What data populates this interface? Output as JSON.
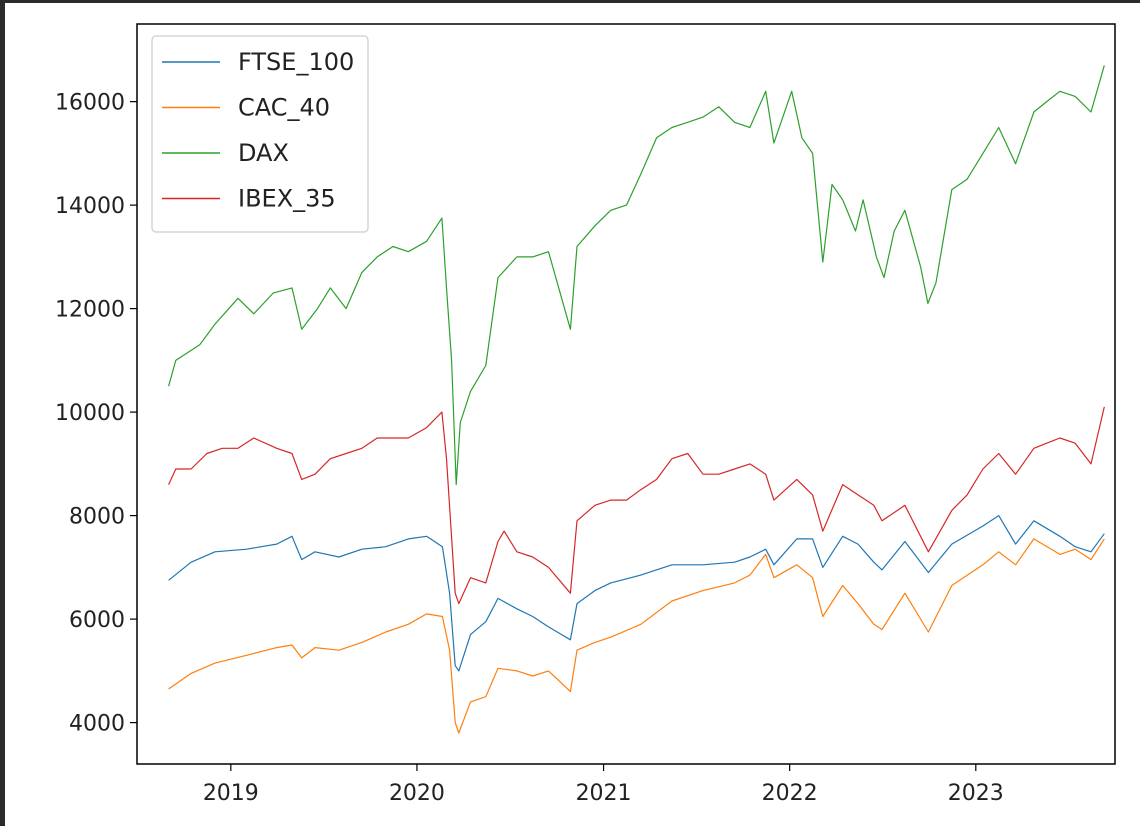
{
  "chart_data": {
    "type": "line",
    "title": "",
    "xlabel": "",
    "ylabel": "",
    "xlim": [
      "2018-07-01",
      "2023-10-01"
    ],
    "ylim": [
      3200,
      17500
    ],
    "x_ticks": [
      {
        "value": "2019-01-01",
        "label": "2019"
      },
      {
        "value": "2020-01-01",
        "label": "2020"
      },
      {
        "value": "2021-01-01",
        "label": "2021"
      },
      {
        "value": "2022-01-01",
        "label": "2022"
      },
      {
        "value": "2023-01-01",
        "label": "2023"
      }
    ],
    "y_ticks": [
      4000,
      6000,
      8000,
      10000,
      12000,
      14000,
      16000
    ],
    "grid": false,
    "legend": "upper left",
    "series": [
      {
        "name": "FTSE_100",
        "color": "#1f77b4",
        "points": [
          [
            "2018-09-01",
            6750
          ],
          [
            "2018-10-15",
            7100
          ],
          [
            "2018-12-01",
            7300
          ],
          [
            "2019-02-01",
            7350
          ],
          [
            "2019-04-01",
            7450
          ],
          [
            "2019-05-01",
            7600
          ],
          [
            "2019-05-20",
            7150
          ],
          [
            "2019-06-15",
            7300
          ],
          [
            "2019-08-01",
            7200
          ],
          [
            "2019-09-15",
            7350
          ],
          [
            "2019-11-01",
            7400
          ],
          [
            "2019-12-15",
            7550
          ],
          [
            "2020-01-20",
            7600
          ],
          [
            "2020-02-20",
            7400
          ],
          [
            "2020-03-05",
            6500
          ],
          [
            "2020-03-16",
            5100
          ],
          [
            "2020-03-23",
            5000
          ],
          [
            "2020-04-15",
            5700
          ],
          [
            "2020-05-15",
            5950
          ],
          [
            "2020-06-08",
            6400
          ],
          [
            "2020-07-15",
            6200
          ],
          [
            "2020-08-15",
            6050
          ],
          [
            "2020-09-15",
            5850
          ],
          [
            "2020-10-28",
            5600
          ],
          [
            "2020-11-10",
            6300
          ],
          [
            "2020-12-15",
            6550
          ],
          [
            "2021-01-15",
            6700
          ],
          [
            "2021-03-15",
            6850
          ],
          [
            "2021-05-15",
            7050
          ],
          [
            "2021-07-15",
            7050
          ],
          [
            "2021-09-15",
            7100
          ],
          [
            "2021-10-15",
            7200
          ],
          [
            "2021-11-15",
            7350
          ],
          [
            "2021-12-01",
            7050
          ],
          [
            "2022-01-15",
            7550
          ],
          [
            "2022-02-15",
            7550
          ],
          [
            "2022-03-07",
            7000
          ],
          [
            "2022-04-15",
            7600
          ],
          [
            "2022-05-15",
            7450
          ],
          [
            "2022-06-15",
            7100
          ],
          [
            "2022-07-01",
            6950
          ],
          [
            "2022-08-15",
            7500
          ],
          [
            "2022-09-30",
            6900
          ],
          [
            "2022-11-15",
            7450
          ],
          [
            "2023-01-15",
            7800
          ],
          [
            "2023-02-15",
            8000
          ],
          [
            "2023-03-20",
            7450
          ],
          [
            "2023-04-25",
            7900
          ],
          [
            "2023-06-15",
            7600
          ],
          [
            "2023-07-15",
            7400
          ],
          [
            "2023-08-15",
            7300
          ],
          [
            "2023-09-10",
            7650
          ]
        ]
      },
      {
        "name": "CAC_40",
        "color": "#ff7f0e",
        "points": [
          [
            "2018-09-01",
            4650
          ],
          [
            "2018-10-15",
            4950
          ],
          [
            "2018-12-01",
            5150
          ],
          [
            "2019-02-01",
            5300
          ],
          [
            "2019-04-01",
            5450
          ],
          [
            "2019-05-01",
            5500
          ],
          [
            "2019-05-20",
            5250
          ],
          [
            "2019-06-15",
            5450
          ],
          [
            "2019-08-01",
            5400
          ],
          [
            "2019-09-15",
            5550
          ],
          [
            "2019-11-01",
            5750
          ],
          [
            "2019-12-15",
            5900
          ],
          [
            "2020-01-20",
            6100
          ],
          [
            "2020-02-20",
            6050
          ],
          [
            "2020-03-05",
            5400
          ],
          [
            "2020-03-16",
            4000
          ],
          [
            "2020-03-23",
            3800
          ],
          [
            "2020-04-15",
            4400
          ],
          [
            "2020-05-15",
            4500
          ],
          [
            "2020-06-08",
            5050
          ],
          [
            "2020-07-15",
            5000
          ],
          [
            "2020-08-15",
            4900
          ],
          [
            "2020-09-15",
            5000
          ],
          [
            "2020-10-28",
            4600
          ],
          [
            "2020-11-10",
            5400
          ],
          [
            "2020-12-15",
            5550
          ],
          [
            "2021-01-15",
            5650
          ],
          [
            "2021-03-15",
            5900
          ],
          [
            "2021-05-15",
            6350
          ],
          [
            "2021-07-15",
            6550
          ],
          [
            "2021-09-15",
            6700
          ],
          [
            "2021-10-15",
            6850
          ],
          [
            "2021-11-15",
            7250
          ],
          [
            "2021-12-01",
            6800
          ],
          [
            "2022-01-15",
            7050
          ],
          [
            "2022-02-15",
            6800
          ],
          [
            "2022-03-07",
            6050
          ],
          [
            "2022-04-15",
            6650
          ],
          [
            "2022-05-15",
            6300
          ],
          [
            "2022-06-15",
            5900
          ],
          [
            "2022-07-01",
            5800
          ],
          [
            "2022-08-15",
            6500
          ],
          [
            "2022-09-30",
            5750
          ],
          [
            "2022-11-15",
            6650
          ],
          [
            "2023-01-15",
            7050
          ],
          [
            "2023-02-15",
            7300
          ],
          [
            "2023-03-20",
            7050
          ],
          [
            "2023-04-25",
            7550
          ],
          [
            "2023-06-15",
            7250
          ],
          [
            "2023-07-15",
            7350
          ],
          [
            "2023-08-15",
            7150
          ],
          [
            "2023-09-10",
            7550
          ]
        ]
      },
      {
        "name": "DAX",
        "color": "#2ca02c",
        "points": [
          [
            "2018-09-01",
            10500
          ],
          [
            "2018-09-15",
            11000
          ],
          [
            "2018-11-01",
            11300
          ],
          [
            "2018-12-01",
            11700
          ],
          [
            "2019-01-15",
            12200
          ],
          [
            "2019-02-15",
            11900
          ],
          [
            "2019-03-25",
            12300
          ],
          [
            "2019-05-01",
            12400
          ],
          [
            "2019-05-20",
            11600
          ],
          [
            "2019-06-20",
            12000
          ],
          [
            "2019-07-15",
            12400
          ],
          [
            "2019-08-15",
            12000
          ],
          [
            "2019-09-15",
            12700
          ],
          [
            "2019-10-15",
            13000
          ],
          [
            "2019-11-15",
            13200
          ],
          [
            "2019-12-15",
            13100
          ],
          [
            "2020-01-20",
            13300
          ],
          [
            "2020-02-19",
            13750
          ],
          [
            "2020-02-28",
            12400
          ],
          [
            "2020-03-09",
            11000
          ],
          [
            "2020-03-18",
            8600
          ],
          [
            "2020-03-26",
            9800
          ],
          [
            "2020-04-15",
            10400
          ],
          [
            "2020-05-15",
            10900
          ],
          [
            "2020-06-08",
            12600
          ],
          [
            "2020-07-15",
            13000
          ],
          [
            "2020-08-15",
            13000
          ],
          [
            "2020-09-15",
            13100
          ],
          [
            "2020-10-28",
            11600
          ],
          [
            "2020-11-10",
            13200
          ],
          [
            "2020-12-15",
            13600
          ],
          [
            "2021-01-15",
            13900
          ],
          [
            "2021-02-15",
            14000
          ],
          [
            "2021-03-15",
            14600
          ],
          [
            "2021-04-15",
            15300
          ],
          [
            "2021-05-15",
            15500
          ],
          [
            "2021-06-15",
            15600
          ],
          [
            "2021-07-15",
            15700
          ],
          [
            "2021-08-15",
            15900
          ],
          [
            "2021-09-15",
            15600
          ],
          [
            "2021-10-15",
            15500
          ],
          [
            "2021-11-15",
            16200
          ],
          [
            "2021-12-01",
            15200
          ],
          [
            "2022-01-05",
            16200
          ],
          [
            "2022-01-25",
            15300
          ],
          [
            "2022-02-15",
            15000
          ],
          [
            "2022-03-07",
            12900
          ],
          [
            "2022-03-25",
            14400
          ],
          [
            "2022-04-15",
            14100
          ],
          [
            "2022-05-10",
            13500
          ],
          [
            "2022-05-25",
            14100
          ],
          [
            "2022-06-20",
            13000
          ],
          [
            "2022-07-05",
            12600
          ],
          [
            "2022-07-25",
            13500
          ],
          [
            "2022-08-15",
            13900
          ],
          [
            "2022-09-15",
            12800
          ],
          [
            "2022-09-29",
            12100
          ],
          [
            "2022-10-15",
            12500
          ],
          [
            "2022-11-15",
            14300
          ],
          [
            "2022-12-15",
            14500
          ],
          [
            "2023-01-15",
            15000
          ],
          [
            "2023-02-15",
            15500
          ],
          [
            "2023-03-20",
            14800
          ],
          [
            "2023-04-25",
            15800
          ],
          [
            "2023-05-20",
            16000
          ],
          [
            "2023-06-15",
            16200
          ],
          [
            "2023-07-15",
            16100
          ],
          [
            "2023-08-15",
            15800
          ],
          [
            "2023-09-10",
            16700
          ]
        ]
      },
      {
        "name": "IBEX_35",
        "color": "#d62728",
        "points": [
          [
            "2018-09-01",
            8600
          ],
          [
            "2018-09-15",
            8900
          ],
          [
            "2018-10-15",
            8900
          ],
          [
            "2018-11-15",
            9200
          ],
          [
            "2018-12-15",
            9300
          ],
          [
            "2019-01-15",
            9300
          ],
          [
            "2019-02-15",
            9500
          ],
          [
            "2019-04-01",
            9300
          ],
          [
            "2019-05-01",
            9200
          ],
          [
            "2019-05-20",
            8700
          ],
          [
            "2019-06-15",
            8800
          ],
          [
            "2019-07-15",
            9100
          ],
          [
            "2019-08-15",
            9200
          ],
          [
            "2019-09-15",
            9300
          ],
          [
            "2019-10-15",
            9500
          ],
          [
            "2019-11-15",
            9500
          ],
          [
            "2019-12-15",
            9500
          ],
          [
            "2020-01-20",
            9700
          ],
          [
            "2020-02-19",
            10000
          ],
          [
            "2020-02-28",
            9100
          ],
          [
            "2020-03-16",
            6500
          ],
          [
            "2020-03-23",
            6300
          ],
          [
            "2020-04-15",
            6800
          ],
          [
            "2020-05-15",
            6700
          ],
          [
            "2020-06-08",
            7500
          ],
          [
            "2020-06-20",
            7700
          ],
          [
            "2020-07-15",
            7300
          ],
          [
            "2020-08-15",
            7200
          ],
          [
            "2020-09-15",
            7000
          ],
          [
            "2020-10-28",
            6500
          ],
          [
            "2020-11-10",
            7900
          ],
          [
            "2020-12-15",
            8200
          ],
          [
            "2021-01-15",
            8300
          ],
          [
            "2021-02-15",
            8300
          ],
          [
            "2021-03-15",
            8500
          ],
          [
            "2021-04-15",
            8700
          ],
          [
            "2021-05-15",
            9100
          ],
          [
            "2021-06-15",
            9200
          ],
          [
            "2021-07-15",
            8800
          ],
          [
            "2021-08-15",
            8800
          ],
          [
            "2021-09-15",
            8900
          ],
          [
            "2021-10-15",
            9000
          ],
          [
            "2021-11-15",
            8800
          ],
          [
            "2021-12-01",
            8300
          ],
          [
            "2022-01-15",
            8700
          ],
          [
            "2022-02-15",
            8400
          ],
          [
            "2022-03-07",
            7700
          ],
          [
            "2022-04-15",
            8600
          ],
          [
            "2022-05-15",
            8400
          ],
          [
            "2022-06-15",
            8200
          ],
          [
            "2022-07-01",
            7900
          ],
          [
            "2022-08-15",
            8200
          ],
          [
            "2022-09-30",
            7300
          ],
          [
            "2022-11-15",
            8100
          ],
          [
            "2022-12-15",
            8400
          ],
          [
            "2023-01-15",
            8900
          ],
          [
            "2023-02-15",
            9200
          ],
          [
            "2023-03-20",
            8800
          ],
          [
            "2023-04-25",
            9300
          ],
          [
            "2023-05-20",
            9400
          ],
          [
            "2023-06-15",
            9500
          ],
          [
            "2023-07-15",
            9400
          ],
          [
            "2023-08-15",
            9000
          ],
          [
            "2023-09-10",
            10100
          ]
        ]
      }
    ]
  }
}
